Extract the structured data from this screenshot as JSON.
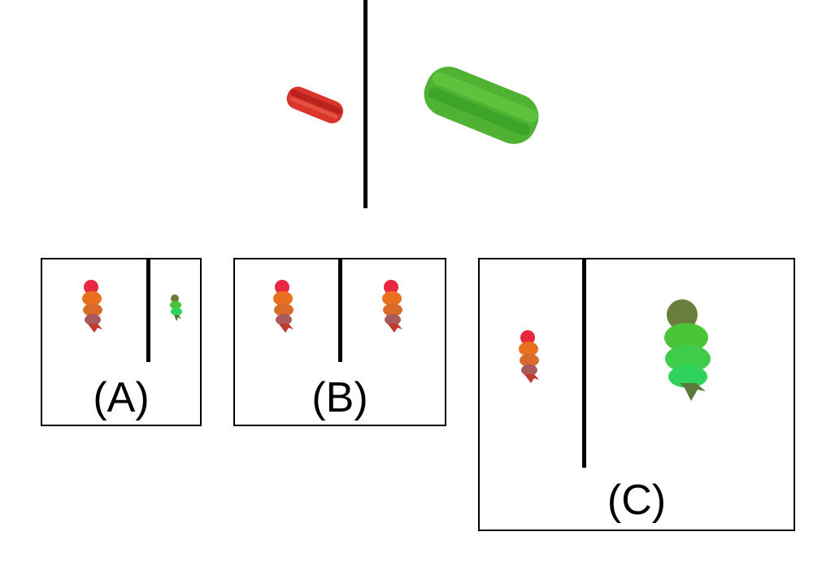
{
  "example": {
    "left_object": "red-sandwich-icon",
    "right_object": "green-sandwich-icon",
    "left_color": "#d9352a",
    "right_color": "#4fb233"
  },
  "options": [
    {
      "label": "(A)",
      "left_object": "red-ice-cream-icon",
      "right_object": "green-ice-cream-icon"
    },
    {
      "label": "(B)",
      "left_object": "red-ice-cream-icon",
      "right_object": "red-ice-cream-icon"
    },
    {
      "label": "(C)",
      "left_object": "red-ice-cream-icon",
      "right_object": "green-ice-cream-icon"
    }
  ],
  "colors": {
    "red_top": "#e8283f",
    "red_mid": "#e8701f",
    "red_low": "#a95a5a",
    "green_top": "#6a7d3a",
    "green_mid": "#4cc43a",
    "green_low": "#2fd35a"
  }
}
